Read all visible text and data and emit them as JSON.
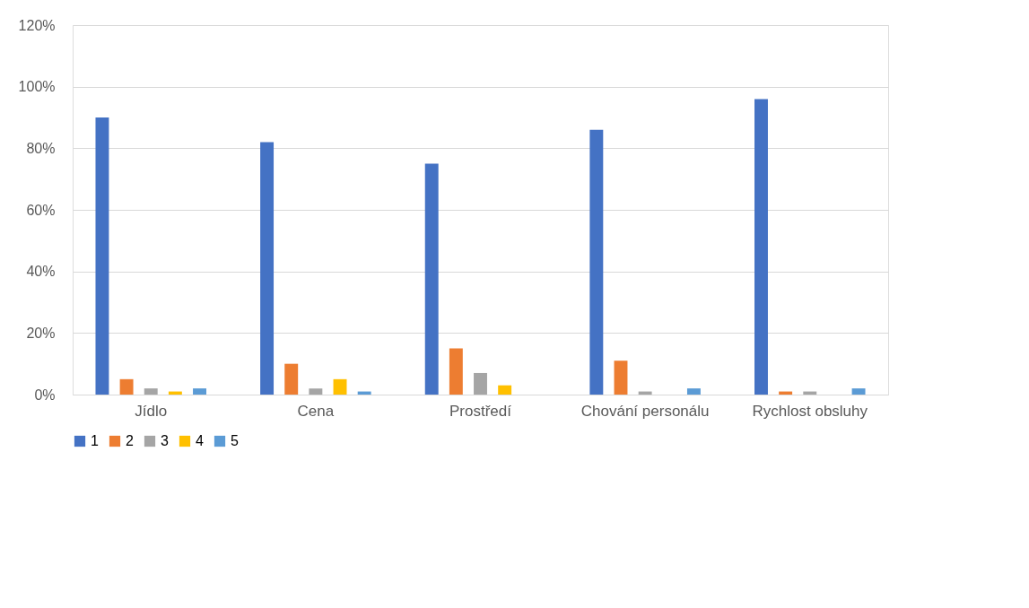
{
  "chart_data": {
    "type": "bar",
    "categories": [
      "Jídlo",
      "Cena",
      "Prostředí",
      "Chování personálu",
      "Rychlost obsluhy"
    ],
    "series": [
      {
        "name": "1",
        "color": "#4472c4",
        "values": [
          90,
          82,
          75,
          86,
          96
        ]
      },
      {
        "name": "2",
        "color": "#ed7d31",
        "values": [
          5,
          10,
          15,
          11,
          1
        ]
      },
      {
        "name": "3",
        "color": "#a5a5a5",
        "values": [
          2,
          2,
          7,
          1,
          1
        ]
      },
      {
        "name": "4",
        "color": "#ffc000",
        "values": [
          1,
          5,
          3,
          0,
          0
        ]
      },
      {
        "name": "5",
        "color": "#5b9bd5",
        "values": [
          2,
          1,
          0,
          2,
          2
        ]
      }
    ],
    "ylim": [
      0,
      120
    ],
    "yticks": [
      {
        "value": 0,
        "label": "0%"
      },
      {
        "value": 20,
        "label": "20%"
      },
      {
        "value": 40,
        "label": "40%"
      },
      {
        "value": 60,
        "label": "60%"
      },
      {
        "value": 80,
        "label": "80%"
      },
      {
        "value": 100,
        "label": "100%"
      },
      {
        "value": 120,
        "label": "120%"
      }
    ],
    "grid": "y",
    "legend": "bottom"
  }
}
